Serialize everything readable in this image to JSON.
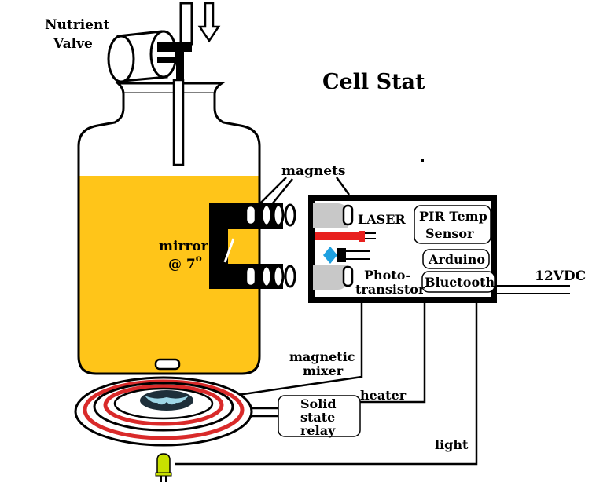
{
  "title": "Cell Stat",
  "labels": {
    "nutrient_valve_line1": "Nutrient",
    "nutrient_valve_line2": "Valve",
    "magnets": "magnets",
    "mirror_line1": "mirror",
    "mirror_line2": "@ 7",
    "mirror_degree": "o",
    "laser": "LASER",
    "pir_line1": "PIR Temp",
    "pir_line2": "Sensor",
    "arduino": "Arduino",
    "bluetooth": "Bluetooth",
    "photo_line1": "Photo-",
    "photo_line2": "transistor",
    "power": "12VDC",
    "mixer_line1": "magnetic",
    "mixer_line2": "mixer",
    "heater": "heater",
    "relay_line1": "Solid",
    "relay_line2": "state",
    "relay_line3": "relay",
    "light": "light"
  },
  "colors": {
    "nutrient_liquid": "#FFC519",
    "laser_red": "#E8201E",
    "photodiode_blue": "#1EA0E0",
    "heater_red": "#D92A2A",
    "stir_bar_dark": "#1E2F3A",
    "stir_bar_light": "#9ED6E6",
    "led_green": "#C8E000",
    "lens_gray": "#C8C8C8"
  }
}
